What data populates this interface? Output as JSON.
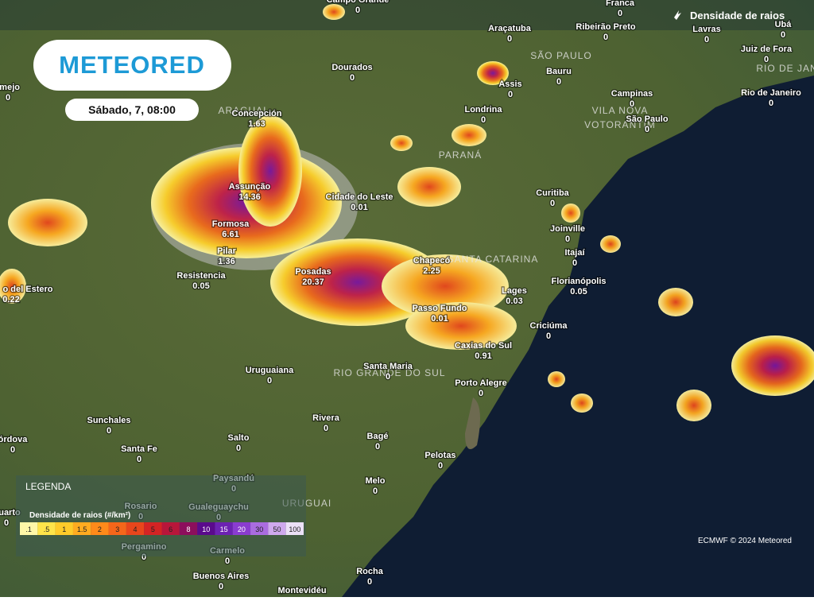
{
  "header": {
    "logo": "METEORED",
    "date": "Sábado, 7, 08:00",
    "layer": "Densidade de raios"
  },
  "legend": {
    "title": "LEGENDA",
    "subtitle": "Densidade de raios (#/km²)",
    "scale": [
      {
        "label": ".1",
        "color": "#fff7a8"
      },
      {
        "label": ".5",
        "color": "#ffe44a"
      },
      {
        "label": "1",
        "color": "#ffcb2a"
      },
      {
        "label": "1.5",
        "color": "#ffab20"
      },
      {
        "label": "2",
        "color": "#ff8a1a"
      },
      {
        "label": "3",
        "color": "#f5661a"
      },
      {
        "label": "4",
        "color": "#e8461c"
      },
      {
        "label": "5",
        "color": "#d42424"
      },
      {
        "label": "6",
        "color": "#b8163a"
      },
      {
        "label": "8",
        "color": "#8c0e5c"
      },
      {
        "label": "10",
        "color": "#5a0a8c"
      },
      {
        "label": "15",
        "color": "#6c22b2"
      },
      {
        "label": "20",
        "color": "#8a3cd0"
      },
      {
        "label": "30",
        "color": "#aa6ce0"
      },
      {
        "label": "50",
        "color": "#cfa8ee"
      },
      {
        "label": "100",
        "color": "#ece0f7"
      }
    ]
  },
  "credit": "ECMWF © 2024 Meteored",
  "regions": [
    "ARAGUAI",
    "SÃO PAULO",
    "RIO DE JAN",
    "VILA NOVA",
    "VOTORANTIM",
    "PARANÁ",
    "SANTA CATARINA",
    "RIO GRANDE DO SUL",
    "URUGUAI"
  ],
  "cities": [
    {
      "name": "Campo Grande",
      "value": 0
    },
    {
      "name": "Franca",
      "value": 0
    },
    {
      "name": "Araçatuba",
      "value": 0
    },
    {
      "name": "Ribeirão Preto",
      "value": 0
    },
    {
      "name": "Lavras",
      "value": 0
    },
    {
      "name": "Ubá",
      "value": 0
    },
    {
      "name": "Juiz de Fora",
      "value": 0
    },
    {
      "name": "Dourados",
      "value": 0
    },
    {
      "name": "Bauru",
      "value": 0
    },
    {
      "name": "Assis",
      "value": 0
    },
    {
      "name": "Campinas",
      "value": 0
    },
    {
      "name": "Rio de Janeiro",
      "value": 0
    },
    {
      "name": "rmejo",
      "value": 0
    },
    {
      "name": "Londrina",
      "value": 0
    },
    {
      "name": "São Paulo",
      "value": 0
    },
    {
      "name": "Concepción",
      "value": 1.63
    },
    {
      "name": "Assunção",
      "value": 14.36
    },
    {
      "name": "Cidade do Leste",
      "value": 0.01
    },
    {
      "name": "Curitiba",
      "value": 0
    },
    {
      "name": "Formosa",
      "value": 6.61
    },
    {
      "name": "Joinville",
      "value": 0
    },
    {
      "name": "Pilar",
      "value": 1.36
    },
    {
      "name": "Itajaí",
      "value": 0
    },
    {
      "name": "Chapecó",
      "value": 2.25
    },
    {
      "name": "Resistencia",
      "value": 0.05
    },
    {
      "name": "Posadas",
      "value": 20.37
    },
    {
      "name": "Florianópolis",
      "value": 0.05
    },
    {
      "name": "o del Estero",
      "value": 0.22
    },
    {
      "name": "Lages",
      "value": 0.03
    },
    {
      "name": "Passo Fundo",
      "value": 0.01
    },
    {
      "name": "Criciúma",
      "value": 0
    },
    {
      "name": "Caxias do Sul",
      "value": 0.91
    },
    {
      "name": "Uruguaiana",
      "value": 0
    },
    {
      "name": "Santa Maria",
      "value": 0
    },
    {
      "name": "Porto Alegre",
      "value": 0
    },
    {
      "name": "Sunchales",
      "value": 0
    },
    {
      "name": "Rivera",
      "value": 0
    },
    {
      "name": "órdova",
      "value": 0
    },
    {
      "name": "Salto",
      "value": 0
    },
    {
      "name": "Bagé",
      "value": 0
    },
    {
      "name": "Santa Fe",
      "value": 0
    },
    {
      "name": "Pelotas",
      "value": 0
    },
    {
      "name": "Paysandú",
      "value": 0
    },
    {
      "name": "Melo",
      "value": 0
    },
    {
      "name": "Rosario",
      "value": 0
    },
    {
      "name": "Gualeguaychu",
      "value": 0
    },
    {
      "name": "Cuarto",
      "value": 0
    },
    {
      "name": "Pergamino",
      "value": 0
    },
    {
      "name": "Carmelo",
      "value": 0
    },
    {
      "name": "Buenos Aires",
      "value": 0
    },
    {
      "name": "Rocha",
      "value": 0
    },
    {
      "name": "Montevidéu",
      "value": null
    }
  ]
}
